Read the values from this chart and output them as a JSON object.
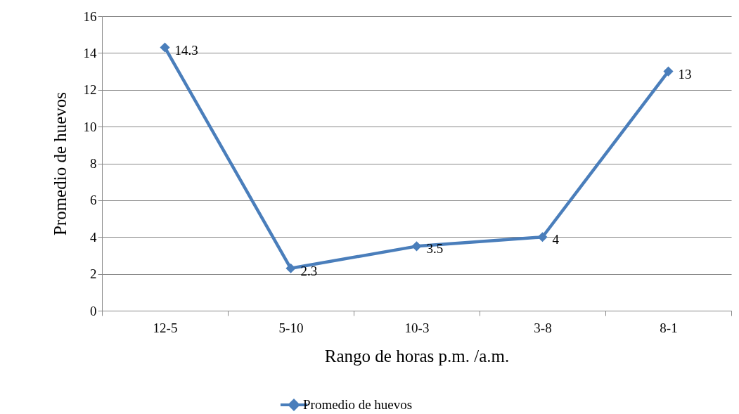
{
  "chart_data": {
    "type": "line",
    "xlabel": "Rango de horas p.m. /a.m.",
    "ylabel": "Promedio de huevos",
    "categories": [
      "12-5",
      "5-10",
      "10-3",
      "3-8",
      "8-1"
    ],
    "series": [
      {
        "name": "Promedio de huevos",
        "color": "#4a7ebb",
        "values": [
          14.3,
          2.3,
          3.5,
          4,
          13
        ]
      }
    ],
    "ylim": [
      0,
      16
    ],
    "yticks": [
      0,
      2,
      4,
      6,
      8,
      10,
      12,
      14,
      16
    ],
    "grid": "y",
    "legend": "bottom",
    "marker": "diamond",
    "line_style": "solid",
    "data_labels": true
  }
}
